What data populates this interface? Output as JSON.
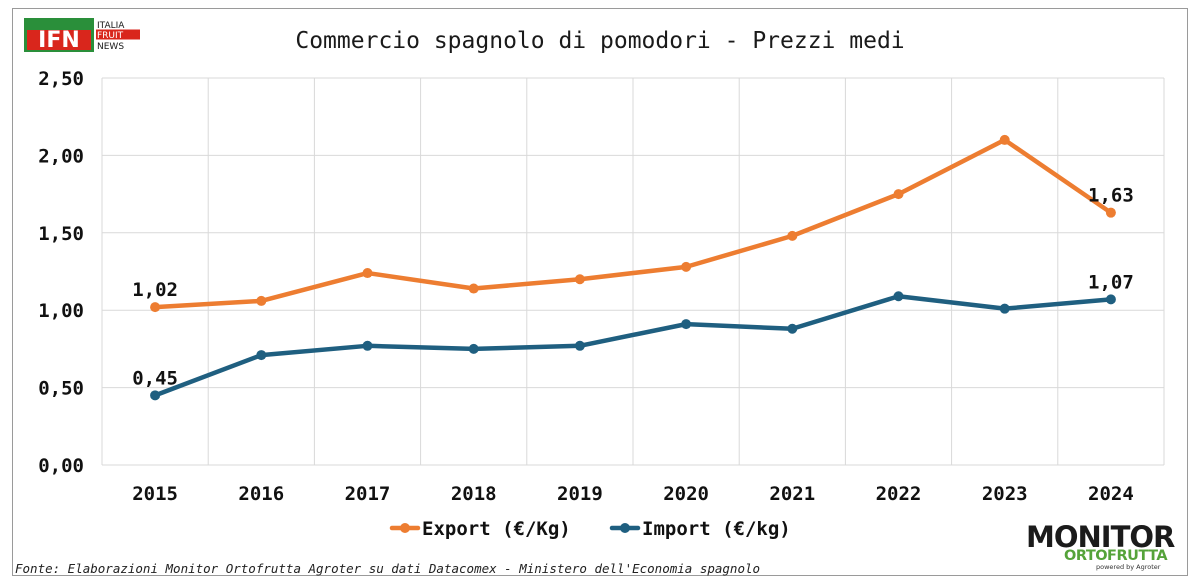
{
  "logo": {
    "ifn_text": "IFN",
    "ifn_line1": "ITALIA",
    "ifn_line2": "FRUIT",
    "ifn_line3": "NEWS"
  },
  "source_note": "Fonte: Elaborazioni Monitor Ortofrutta Agroter su dati Datacomex - Ministero dell'Economia spagnolo",
  "brand": {
    "line1": "MONITOR",
    "line2": "ORTOFRUTTA",
    "powered": "powered by Agroter"
  },
  "colors": {
    "export": "#ed7d31",
    "import": "#1f5f80",
    "grid": "#d9d9d9"
  },
  "chart_data": {
    "type": "line",
    "title": "Commercio spagnolo di pomodori - Prezzi medi",
    "x": [
      "2015",
      "2016",
      "2017",
      "2018",
      "2019",
      "2020",
      "2021",
      "2022",
      "2023",
      "2024"
    ],
    "series": [
      {
        "name": "Export (€/Kg)",
        "values": [
          1.02,
          1.06,
          1.24,
          1.14,
          1.2,
          1.28,
          1.48,
          1.75,
          2.1,
          1.63
        ]
      },
      {
        "name": "Import (€/kg)",
        "values": [
          0.45,
          0.71,
          0.77,
          0.75,
          0.77,
          0.91,
          0.88,
          1.09,
          1.01,
          1.07
        ]
      }
    ],
    "data_labels": [
      {
        "series": 0,
        "index": 0,
        "text": "1,02"
      },
      {
        "series": 0,
        "index": 9,
        "text": "1,63"
      },
      {
        "series": 1,
        "index": 0,
        "text": "0,45"
      },
      {
        "series": 1,
        "index": 9,
        "text": "1,07"
      }
    ],
    "ylim": [
      0,
      2.5
    ],
    "yticks": [
      "0,00",
      "0,50",
      "1,00",
      "1,50",
      "2,00",
      "2,50"
    ],
    "grid": true,
    "legend_position": "bottom"
  }
}
